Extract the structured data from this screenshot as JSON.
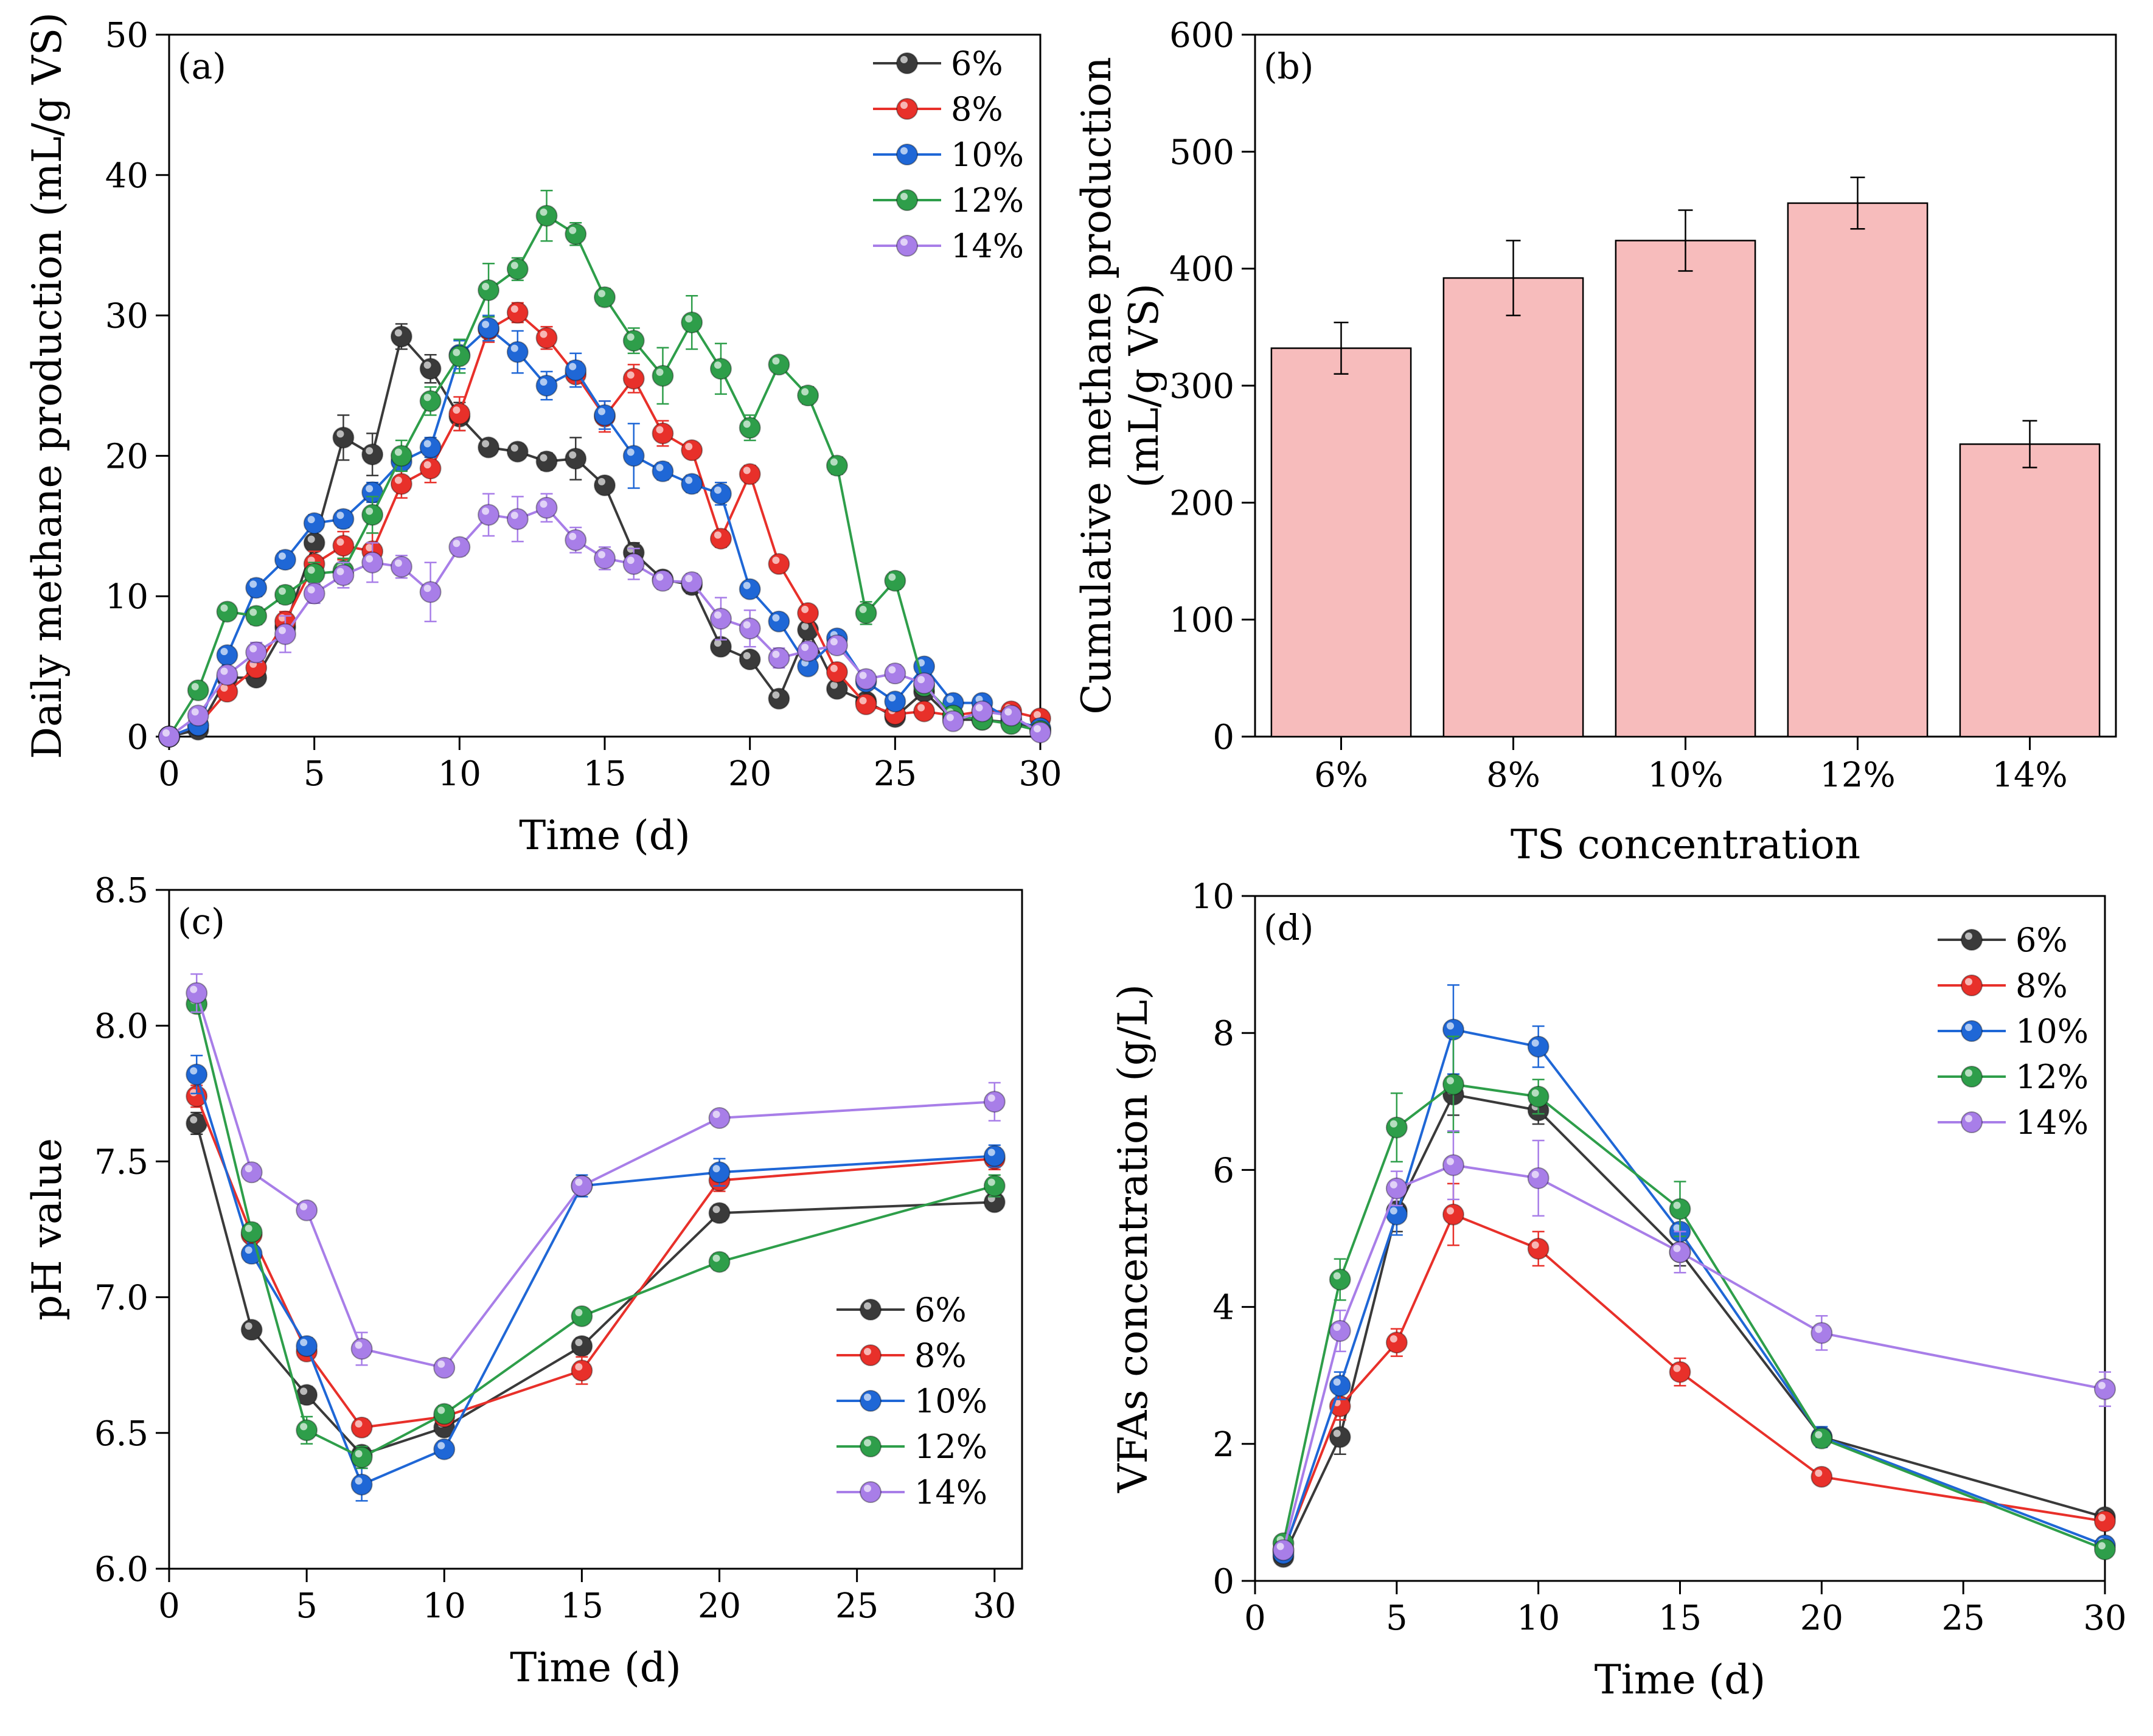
{
  "figure": {
    "series_colors": {
      "6%": "#3a3a3a",
      "8%": "#e8302a",
      "10%": "#1f67d6",
      "12%": "#2e9e4a",
      "14%": "#a87ee8"
    },
    "bar_color": "#f7bcbc"
  },
  "chart_data": [
    {
      "id": "a",
      "type": "line",
      "panel_label": "(a)",
      "title": "",
      "xlabel": "Time (d)",
      "ylabel": "Daily methane production (mL/g VS)",
      "xlim": [
        0,
        30
      ],
      "ylim": [
        0,
        50
      ],
      "xticks": [
        0,
        5,
        10,
        15,
        20,
        25,
        30
      ],
      "yticks": [
        0,
        10,
        20,
        30,
        40,
        50
      ],
      "legend_position": "top-right",
      "series": [
        {
          "name": "6%",
          "x": [
            0,
            1,
            2,
            3,
            4,
            5,
            6,
            7,
            8,
            9,
            10,
            11,
            12,
            13,
            14,
            15,
            16,
            17,
            18,
            19,
            20,
            21,
            22,
            23,
            24,
            25,
            26,
            27,
            28,
            29,
            30
          ],
          "y": [
            0,
            0.5,
            4.2,
            4.2,
            7.8,
            13.8,
            21.3,
            20.1,
            28.5,
            26.2,
            22.8,
            20.6,
            20.3,
            19.6,
            19.8,
            17.9,
            13.1,
            11.2,
            10.8,
            6.4,
            5.5,
            2.7,
            7.6,
            3.4,
            2.5,
            1.4,
            3.2,
            1.2,
            1.2,
            1.0,
            0.5
          ],
          "err": [
            0,
            0.3,
            0.5,
            0.5,
            0.8,
            1.0,
            1.6,
            1.5,
            0.9,
            1.0,
            1.0,
            0.5,
            0.5,
            0.6,
            1.5,
            0.5,
            0.7,
            0.5,
            0.6,
            0.4,
            0.5,
            0.4,
            0.5,
            0.3,
            0.3,
            0.3,
            0.4,
            0.2,
            0.2,
            0.2,
            0.1
          ]
        },
        {
          "name": "8%",
          "x": [
            0,
            1,
            2,
            3,
            4,
            5,
            6,
            7,
            8,
            9,
            10,
            11,
            12,
            13,
            14,
            15,
            16,
            17,
            18,
            19,
            20,
            21,
            22,
            23,
            24,
            25,
            26,
            27,
            28,
            29,
            30
          ],
          "y": [
            0,
            0.8,
            3.2,
            4.9,
            8.2,
            12.3,
            13.6,
            13.2,
            18.0,
            19.1,
            23.0,
            29.0,
            30.2,
            28.4,
            25.8,
            22.8,
            25.5,
            21.6,
            20.4,
            14.1,
            18.7,
            12.3,
            8.8,
            4.6,
            2.3,
            1.6,
            1.8,
            1.5,
            1.8,
            1.8,
            1.3
          ],
          "err": [
            0,
            0.3,
            0.4,
            0.5,
            0.7,
            0.9,
            1.0,
            1.3,
            1.0,
            1.0,
            1.2,
            0.9,
            0.7,
            0.8,
            0.9,
            1.1,
            1.0,
            0.9,
            0.5,
            0.6,
            0.6,
            0.5,
            0.5,
            0.4,
            0.3,
            0.2,
            0.2,
            0.2,
            0.2,
            0.2,
            0.1
          ]
        },
        {
          "name": "10%",
          "x": [
            0,
            1,
            2,
            3,
            4,
            5,
            6,
            7,
            8,
            9,
            10,
            11,
            12,
            13,
            14,
            15,
            16,
            17,
            18,
            19,
            20,
            21,
            22,
            23,
            24,
            25,
            26,
            27,
            28,
            29,
            30
          ],
          "y": [
            0,
            0.8,
            5.8,
            10.6,
            12.6,
            15.2,
            15.5,
            17.4,
            19.6,
            20.6,
            27.2,
            29.1,
            27.4,
            25.0,
            26.1,
            22.9,
            20.0,
            18.9,
            18.0,
            17.3,
            10.5,
            8.2,
            5.0,
            7.0,
            3.9,
            2.5,
            5.0,
            2.4,
            2.4,
            1.2,
            0.6
          ],
          "err": [
            0,
            0.3,
            0.5,
            0.6,
            0.6,
            0.6,
            0.6,
            0.7,
            0.6,
            0.7,
            1.0,
            0.9,
            1.5,
            1.0,
            1.2,
            1.0,
            2.3,
            0.6,
            0.6,
            0.8,
            0.5,
            0.5,
            0.5,
            0.4,
            0.4,
            0.3,
            0.5,
            0.3,
            0.3,
            0.2,
            0.1
          ]
        },
        {
          "name": "12%",
          "x": [
            0,
            1,
            2,
            3,
            4,
            5,
            6,
            7,
            8,
            9,
            10,
            11,
            12,
            13,
            14,
            15,
            16,
            17,
            18,
            19,
            20,
            21,
            22,
            23,
            24,
            25,
            26,
            27,
            28,
            29,
            30
          ],
          "y": [
            0,
            3.3,
            8.9,
            8.6,
            10.1,
            11.6,
            11.8,
            15.8,
            20.0,
            23.9,
            27.1,
            31.8,
            33.3,
            37.1,
            35.8,
            31.3,
            28.2,
            25.7,
            29.5,
            26.2,
            22.0,
            26.5,
            24.3,
            19.3,
            8.8,
            11.1,
            3.6,
            1.5,
            1.2,
            0.9,
            0.4
          ],
          "err": [
            0,
            0.4,
            0.5,
            0.6,
            0.6,
            0.8,
            0.9,
            1.3,
            1.1,
            1.0,
            1.2,
            1.9,
            0.8,
            1.8,
            0.8,
            0.6,
            0.9,
            2.0,
            1.9,
            1.8,
            0.9,
            0.5,
            0.6,
            0.6,
            0.8,
            0.6,
            0.5,
            0.3,
            0.3,
            0.2,
            0.1
          ]
        },
        {
          "name": "14%",
          "x": [
            0,
            1,
            2,
            3,
            4,
            5,
            6,
            7,
            8,
            9,
            10,
            11,
            12,
            13,
            14,
            15,
            16,
            17,
            18,
            19,
            20,
            21,
            22,
            23,
            24,
            25,
            26,
            27,
            28,
            29,
            30
          ],
          "y": [
            0,
            1.5,
            4.4,
            6.0,
            7.3,
            10.2,
            11.5,
            12.4,
            12.1,
            10.3,
            13.5,
            15.8,
            15.5,
            16.3,
            14.0,
            12.7,
            12.3,
            11.1,
            11.0,
            8.4,
            7.7,
            5.6,
            6.1,
            6.5,
            4.1,
            4.5,
            3.8,
            1.1,
            1.8,
            1.5,
            0.3
          ],
          "err": [
            0,
            0.4,
            0.5,
            0.7,
            1.3,
            0.7,
            0.9,
            1.4,
            0.8,
            2.1,
            0.6,
            1.5,
            1.6,
            1.0,
            0.9,
            0.8,
            1.1,
            0.6,
            0.6,
            1.5,
            1.3,
            0.7,
            0.6,
            0.6,
            0.6,
            0.6,
            0.5,
            0.4,
            0.3,
            0.3,
            0.1
          ]
        }
      ]
    },
    {
      "id": "b",
      "type": "bar",
      "panel_label": "(b)",
      "title": "",
      "xlabel": "TS concentration",
      "ylabel": "Cumulative methane production (mL/g VS)",
      "ylabel_lines": [
        "Cumulative methane production",
        "(mL/g VS)"
      ],
      "ylim": [
        0,
        600
      ],
      "yticks": [
        0,
        100,
        200,
        300,
        400,
        500,
        600
      ],
      "categories": [
        "6%",
        "8%",
        "10%",
        "12%",
        "14%"
      ],
      "values": [
        332,
        392,
        424,
        456,
        250
      ],
      "err": [
        22,
        32,
        26,
        22,
        20
      ]
    },
    {
      "id": "c",
      "type": "line",
      "panel_label": "(c)",
      "title": "",
      "xlabel": "Time (d)",
      "ylabel": "pH value",
      "xlim": [
        0,
        31
      ],
      "ylim": [
        6.0,
        8.5
      ],
      "xticks": [
        0,
        5,
        10,
        15,
        20,
        25,
        30
      ],
      "yticks": [
        6.0,
        6.5,
        7.0,
        7.5,
        8.0,
        8.5
      ],
      "ytick_labels": [
        "6.0",
        "6.5",
        "7.0",
        "7.5",
        "8.0",
        "8.5"
      ],
      "legend_position": "center-right",
      "series": [
        {
          "name": "6%",
          "x": [
            1,
            3,
            5,
            7,
            10,
            15,
            20,
            30
          ],
          "y": [
            7.64,
            6.88,
            6.64,
            6.42,
            6.52,
            6.82,
            7.31,
            7.35
          ],
          "err": [
            0.04,
            0.02,
            0.03,
            0.03,
            0.03,
            0.03,
            0.03,
            0.02
          ]
        },
        {
          "name": "8%",
          "x": [
            1,
            3,
            5,
            7,
            10,
            15,
            20,
            30
          ],
          "y": [
            7.74,
            7.23,
            6.8,
            6.52,
            6.56,
            6.73,
            7.43,
            7.51
          ],
          "err": [
            0.04,
            0.03,
            0.03,
            0.03,
            0.03,
            0.05,
            0.04,
            0.04
          ]
        },
        {
          "name": "10%",
          "x": [
            1,
            3,
            5,
            7,
            10,
            15,
            20,
            30
          ],
          "y": [
            7.82,
            7.16,
            6.82,
            6.31,
            6.44,
            7.41,
            7.46,
            7.52
          ],
          "err": [
            0.07,
            0.03,
            0.03,
            0.06,
            0.03,
            0.04,
            0.05,
            0.04
          ]
        },
        {
          "name": "12%",
          "x": [
            1,
            3,
            5,
            7,
            10,
            15,
            20,
            30
          ],
          "y": [
            8.08,
            7.24,
            6.51,
            6.41,
            6.57,
            6.93,
            7.13,
            7.41
          ],
          "err": [
            0.03,
            0.03,
            0.05,
            0.04,
            0.03,
            0.02,
            0.03,
            0.04
          ]
        },
        {
          "name": "14%",
          "x": [
            1,
            3,
            5,
            7,
            10,
            15,
            20,
            30
          ],
          "y": [
            8.12,
            7.46,
            7.32,
            6.81,
            6.74,
            7.41,
            7.66,
            7.72
          ],
          "err": [
            0.07,
            0.03,
            0.02,
            0.06,
            0.02,
            0.03,
            0.02,
            0.07
          ]
        }
      ]
    },
    {
      "id": "d",
      "type": "line",
      "panel_label": "(d)",
      "title": "",
      "xlabel": "Time (d)",
      "ylabel": "VFAs concentration (g/L)",
      "xlim": [
        0,
        30
      ],
      "ylim": [
        0,
        10
      ],
      "xticks": [
        0,
        5,
        10,
        15,
        20,
        25,
        30
      ],
      "yticks": [
        0,
        2,
        4,
        6,
        8,
        10
      ],
      "legend_position": "top-right",
      "series": [
        {
          "name": "6%",
          "x": [
            1,
            3,
            5,
            7,
            10,
            15,
            20,
            30
          ],
          "y": [
            0.35,
            2.1,
            5.4,
            7.1,
            6.87,
            4.8,
            2.1,
            0.93
          ],
          "err": [
            0.05,
            0.25,
            0.3,
            0.3,
            0.2,
            0.2,
            0.1,
            0.05
          ]
        },
        {
          "name": "8%",
          "x": [
            1,
            3,
            5,
            7,
            10,
            15,
            20,
            30
          ],
          "y": [
            0.45,
            2.55,
            3.48,
            5.35,
            4.85,
            3.05,
            1.52,
            0.87
          ],
          "err": [
            0.05,
            0.2,
            0.2,
            0.45,
            0.25,
            0.2,
            0.08,
            0.05
          ]
        },
        {
          "name": "10%",
          "x": [
            1,
            3,
            5,
            7,
            10,
            15,
            20,
            30
          ],
          "y": [
            0.4,
            2.85,
            5.35,
            8.05,
            7.8,
            5.1,
            2.1,
            0.52
          ],
          "err": [
            0.05,
            0.2,
            0.3,
            0.65,
            0.3,
            0.25,
            0.15,
            0.05
          ]
        },
        {
          "name": "12%",
          "x": [
            1,
            3,
            5,
            7,
            10,
            15,
            20,
            30
          ],
          "y": [
            0.55,
            4.4,
            6.62,
            7.25,
            7.07,
            5.43,
            2.08,
            0.46
          ],
          "err": [
            0.05,
            0.3,
            0.5,
            0.7,
            0.25,
            0.4,
            0.12,
            0.05
          ]
        },
        {
          "name": "14%",
          "x": [
            1,
            3,
            5,
            7,
            10,
            15,
            20,
            30
          ],
          "y": [
            0.45,
            3.65,
            5.73,
            6.07,
            5.88,
            4.8,
            3.62,
            2.8
          ],
          "err": [
            0.05,
            0.3,
            0.25,
            0.5,
            0.55,
            0.3,
            0.25,
            0.25
          ]
        }
      ]
    }
  ]
}
